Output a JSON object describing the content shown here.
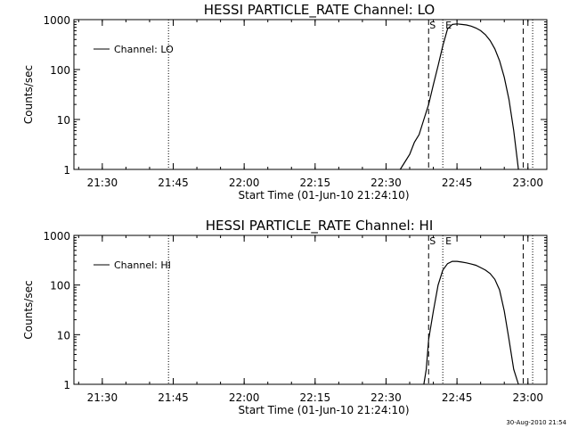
{
  "chart_data": [
    {
      "type": "line",
      "title": "HESSI PARTICLE_RATE Channel: LO",
      "xlabel": "Start Time (01-Jun-10 21:24:10)",
      "ylabel": "Counts/sec",
      "yscale": "log",
      "xlim": [
        "21:24",
        "23:04"
      ],
      "ylim": [
        1,
        1000
      ],
      "xticks": [
        "21:30",
        "21:45",
        "22:00",
        "22:15",
        "22:30",
        "22:45",
        "23:00"
      ],
      "yticks": [
        "1",
        "10",
        "100",
        "1000"
      ],
      "legend": "top-left",
      "series": [
        {
          "name": "Channel: LO",
          "x": [
            "22:33",
            "22:35",
            "22:36",
            "22:37",
            "22:38",
            "22:39",
            "22:40",
            "22:41",
            "22:42",
            "22:43",
            "22:44",
            "22:45",
            "22:46",
            "22:47",
            "22:48",
            "22:49",
            "22:50",
            "22:51",
            "22:52",
            "22:53",
            "22:54",
            "22:55",
            "22:56",
            "22:57",
            "22:58"
          ],
          "values": [
            1,
            2,
            3.5,
            5,
            10,
            20,
            50,
            120,
            300,
            650,
            800,
            820,
            800,
            780,
            740,
            680,
            600,
            500,
            380,
            260,
            150,
            70,
            25,
            6,
            1
          ]
        }
      ],
      "markers": [
        {
          "label": "",
          "time": "21:44",
          "style": "dotted"
        },
        {
          "label": "S",
          "time": "22:39",
          "style": "dashed"
        },
        {
          "label": "E",
          "time": "22:42",
          "style": "dotted"
        },
        {
          "label": "",
          "time": "22:59",
          "style": "dashed"
        },
        {
          "label": "",
          "time": "23:01",
          "style": "dotted"
        }
      ]
    },
    {
      "type": "line",
      "title": "HESSI PARTICLE_RATE Channel: HI",
      "xlabel": "Start Time (01-Jun-10 21:24:10)",
      "ylabel": "Counts/sec",
      "yscale": "log",
      "xlim": [
        "21:24",
        "23:04"
      ],
      "ylim": [
        1,
        1000
      ],
      "xticks": [
        "21:30",
        "21:45",
        "22:00",
        "22:15",
        "22:30",
        "22:45",
        "23:00"
      ],
      "yticks": [
        "1",
        "10",
        "100",
        "1000"
      ],
      "legend": "top-left",
      "series": [
        {
          "name": "Channel: HI",
          "x": [
            "22:38",
            "22:38.5",
            "22:39",
            "22:40",
            "22:41",
            "22:42",
            "22:43",
            "22:44",
            "22:45",
            "22:46",
            "22:47",
            "22:48",
            "22:49",
            "22:50",
            "22:51",
            "22:52",
            "22:53",
            "22:54",
            "22:55",
            "22:56",
            "22:57",
            "22:58"
          ],
          "values": [
            1,
            2,
            8,
            30,
            100,
            200,
            270,
            300,
            300,
            290,
            280,
            265,
            250,
            225,
            200,
            170,
            130,
            80,
            30,
            8,
            2,
            1
          ]
        }
      ],
      "markers": [
        {
          "label": "",
          "time": "21:44",
          "style": "dotted"
        },
        {
          "label": "S",
          "time": "22:39",
          "style": "dashed"
        },
        {
          "label": "E",
          "time": "22:42",
          "style": "dotted"
        },
        {
          "label": "",
          "time": "22:59",
          "style": "dashed"
        },
        {
          "label": "",
          "time": "23:01",
          "style": "dotted"
        }
      ]
    }
  ],
  "footer": {
    "timestamp": "30-Aug-2010 21:54"
  }
}
